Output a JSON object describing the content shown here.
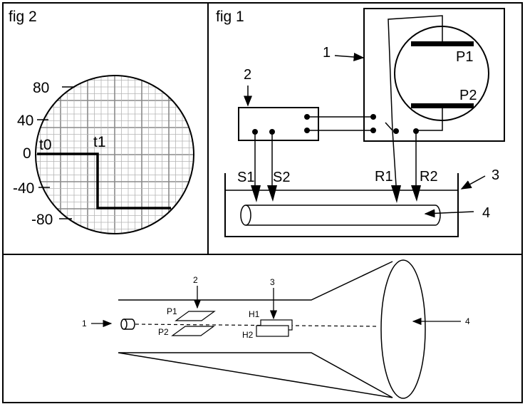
{
  "fig2": {
    "title": "fig 2",
    "scale_labels": [
      "80",
      "40",
      "0",
      "-40",
      "-80"
    ],
    "time_labels": [
      "t0",
      "t1"
    ]
  },
  "fig1": {
    "title": "fig 1",
    "callouts": [
      "1",
      "2",
      "3",
      "4"
    ],
    "plates": [
      "P1",
      "P2"
    ],
    "probes": [
      "S1",
      "S2",
      "R1",
      "R2"
    ]
  },
  "crt": {
    "callouts": [
      "1",
      "2",
      "3",
      "4"
    ],
    "plates": [
      "P1",
      "P2"
    ],
    "coils": [
      "H1",
      "H2"
    ]
  }
}
